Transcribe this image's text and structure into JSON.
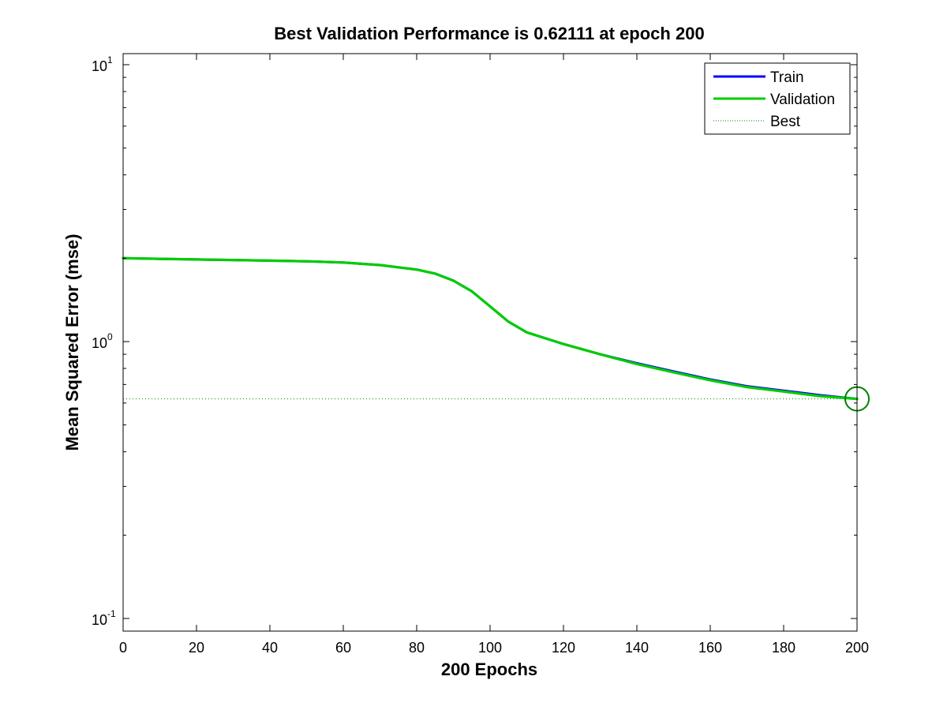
{
  "chart_data": {
    "type": "line",
    "title": "Best Validation Performance is 0.62111 at epoch 200",
    "xlabel": "200 Epochs",
    "ylabel": "Mean Squared Error  (mse)",
    "xlim": [
      0,
      200
    ],
    "ylim": [
      0.08,
      10.5
    ],
    "yscale": "log",
    "x_ticks": [
      0,
      20,
      40,
      60,
      80,
      100,
      120,
      140,
      160,
      180,
      200
    ],
    "y_ticks": [
      {
        "value": 0.1,
        "base": "10",
        "exp": "-1"
      },
      {
        "value": 1,
        "base": "10",
        "exp": "0"
      },
      {
        "value": 10,
        "base": "10",
        "exp": "1"
      }
    ],
    "grid": false,
    "legend_position": "top-right",
    "series": [
      {
        "name": "Train",
        "color": "#0000ff",
        "x": [
          0,
          10,
          20,
          30,
          40,
          50,
          60,
          70,
          80,
          85,
          90,
          95,
          100,
          105,
          110,
          120,
          130,
          140,
          150,
          160,
          170,
          180,
          190,
          200
        ],
        "y": [
          2.0,
          1.99,
          1.98,
          1.97,
          1.96,
          1.95,
          1.93,
          1.89,
          1.82,
          1.76,
          1.66,
          1.52,
          1.34,
          1.18,
          1.08,
          0.98,
          0.9,
          0.835,
          0.78,
          0.73,
          0.69,
          0.665,
          0.64,
          0.621
        ]
      },
      {
        "name": "Validation",
        "color": "#00cc00",
        "x": [
          0,
          10,
          20,
          30,
          40,
          50,
          60,
          70,
          80,
          85,
          90,
          95,
          100,
          105,
          110,
          120,
          130,
          140,
          150,
          160,
          170,
          180,
          190,
          200
        ],
        "y": [
          2.0,
          1.99,
          1.98,
          1.97,
          1.96,
          1.95,
          1.93,
          1.89,
          1.82,
          1.76,
          1.66,
          1.52,
          1.34,
          1.18,
          1.08,
          0.98,
          0.9,
          0.83,
          0.775,
          0.725,
          0.685,
          0.66,
          0.635,
          0.62111
        ]
      }
    ],
    "best": {
      "name": "Best",
      "color": "#008000",
      "epoch": 200,
      "value": 0.62111
    }
  }
}
